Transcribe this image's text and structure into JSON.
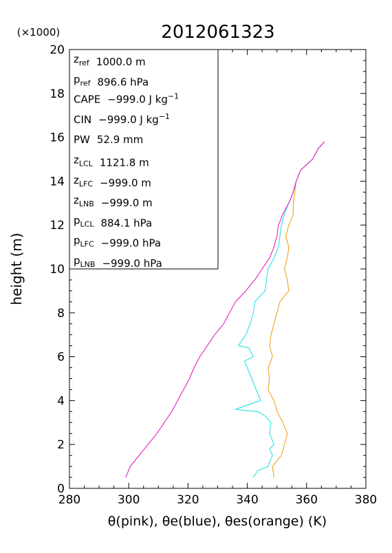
{
  "chart_data": {
    "type": "line",
    "title": "2012061323",
    "y_multiplier_label": "(×1000)",
    "xlabel": "θ(pink), θe(blue), θes(orange)   (K)",
    "ylabel": "height (m)",
    "xlim": [
      280,
      380
    ],
    "ylim": [
      0,
      20
    ],
    "x_ticks": [
      "280",
      "300",
      "320",
      "340",
      "360",
      "380"
    ],
    "y_ticks": [
      "0",
      "2",
      "4",
      "6",
      "8",
      "10",
      "12",
      "14",
      "16",
      "18",
      "20"
    ],
    "grid": false,
    "info_box": [
      {
        "sym": "z",
        "sub": "ref",
        "sup": "",
        "text": "1000.0 m"
      },
      {
        "sym": "p",
        "sub": "ref",
        "sup": "",
        "text": "896.6 hPa"
      },
      {
        "sym": "CAPE",
        "sub": "",
        "sup": "-1",
        "text": "−999.0 J kg"
      },
      {
        "sym": "CIN",
        "sub": "",
        "sup": "-1",
        "text": "−999.0 J kg"
      },
      {
        "sym": "PW",
        "sub": "",
        "sup": "",
        "text": "52.9 mm"
      },
      {
        "sym": "z",
        "sub": "LCL",
        "sup": "",
        "text": "1121.8 m"
      },
      {
        "sym": "z",
        "sub": "LFC",
        "sup": "",
        "text": "−999.0 m"
      },
      {
        "sym": "z",
        "sub": "LNB",
        "sup": "",
        "text": "−999.0 m"
      },
      {
        "sym": "p",
        "sub": "LCL",
        "sup": "",
        "text": "884.1 hPa"
      },
      {
        "sym": "p",
        "sub": "LFC",
        "sup": "",
        "text": "−999.0 hPa"
      },
      {
        "sym": "p",
        "sub": "LNB",
        "sup": "",
        "text": "−999.0 hPa"
      }
    ],
    "series": [
      {
        "color": "#e020c8",
        "points": [
          [
            299.0,
            0.5
          ],
          [
            300.5,
            1.0
          ],
          [
            303.5,
            1.5
          ],
          [
            306.5,
            2.0
          ],
          [
            309.5,
            2.5
          ],
          [
            312.0,
            3.0
          ],
          [
            314.5,
            3.5
          ],
          [
            316.5,
            4.0
          ],
          [
            318.5,
            4.5
          ],
          [
            320.5,
            5.0
          ],
          [
            322.0,
            5.5
          ],
          [
            324.0,
            6.0
          ],
          [
            326.5,
            6.5
          ],
          [
            329.0,
            7.0
          ],
          [
            332.0,
            7.5
          ],
          [
            334.0,
            8.0
          ],
          [
            336.0,
            8.5
          ],
          [
            339.5,
            9.0
          ],
          [
            342.5,
            9.5
          ],
          [
            345.0,
            10.0
          ],
          [
            347.5,
            10.5
          ],
          [
            349.0,
            11.0
          ],
          [
            350.0,
            11.5
          ],
          [
            350.5,
            12.0
          ],
          [
            352.0,
            12.5
          ],
          [
            354.0,
            13.0
          ],
          [
            355.5,
            13.5
          ],
          [
            356.5,
            14.0
          ],
          [
            358.0,
            14.5
          ],
          [
            362.0,
            15.0
          ],
          [
            364.0,
            15.5
          ],
          [
            366.0,
            15.8
          ]
        ]
      },
      {
        "color": "#28e0e0",
        "points": [
          [
            342.0,
            0.5
          ],
          [
            343.5,
            0.8
          ],
          [
            347.0,
            1.0
          ],
          [
            348.5,
            1.5
          ],
          [
            347.5,
            1.8
          ],
          [
            349.0,
            2.0
          ],
          [
            347.5,
            2.5
          ],
          [
            348.0,
            3.0
          ],
          [
            346.0,
            3.3
          ],
          [
            343.5,
            3.5
          ],
          [
            336.0,
            3.6
          ],
          [
            340.0,
            3.8
          ],
          [
            344.5,
            4.0
          ],
          [
            343.0,
            4.5
          ],
          [
            341.5,
            5.0
          ],
          [
            340.0,
            5.5
          ],
          [
            339.0,
            5.8
          ],
          [
            342.0,
            6.0
          ],
          [
            340.5,
            6.4
          ],
          [
            337.0,
            6.5
          ],
          [
            339.5,
            7.0
          ],
          [
            341.0,
            7.5
          ],
          [
            342.0,
            8.0
          ],
          [
            342.5,
            8.5
          ],
          [
            346.0,
            9.0
          ],
          [
            346.5,
            9.5
          ],
          [
            347.0,
            10.0
          ],
          [
            349.0,
            10.5
          ],
          [
            350.5,
            11.0
          ],
          [
            351.0,
            11.5
          ],
          [
            351.5,
            12.0
          ],
          [
            352.5,
            12.5
          ],
          [
            354.0,
            13.0
          ],
          [
            355.5,
            13.5
          ],
          [
            356.5,
            14.0
          ],
          [
            358.0,
            14.5
          ],
          [
            362.0,
            15.0
          ],
          [
            364.0,
            15.5
          ],
          [
            366.0,
            15.8
          ]
        ]
      },
      {
        "color": "#f0a020",
        "points": [
          [
            349.0,
            0.5
          ],
          [
            348.5,
            1.0
          ],
          [
            351.5,
            1.5
          ],
          [
            352.5,
            2.0
          ],
          [
            353.5,
            2.5
          ],
          [
            352.0,
            3.0
          ],
          [
            350.0,
            3.5
          ],
          [
            349.0,
            4.0
          ],
          [
            347.0,
            4.5
          ],
          [
            347.5,
            5.0
          ],
          [
            347.0,
            5.5
          ],
          [
            348.5,
            6.0
          ],
          [
            347.5,
            6.5
          ],
          [
            348.0,
            7.0
          ],
          [
            349.0,
            7.5
          ],
          [
            350.0,
            8.0
          ],
          [
            351.0,
            8.5
          ],
          [
            354.0,
            9.0
          ],
          [
            353.5,
            9.5
          ],
          [
            352.5,
            10.0
          ],
          [
            353.5,
            10.5
          ],
          [
            354.0,
            11.0
          ],
          [
            353.0,
            11.5
          ],
          [
            354.0,
            12.0
          ],
          [
            355.5,
            12.5
          ],
          [
            355.5,
            13.0
          ],
          [
            356.0,
            13.5
          ],
          [
            356.5,
            14.0
          ],
          [
            358.0,
            14.5
          ],
          [
            362.0,
            15.0
          ],
          [
            364.0,
            15.5
          ],
          [
            366.0,
            15.8
          ]
        ]
      }
    ]
  }
}
